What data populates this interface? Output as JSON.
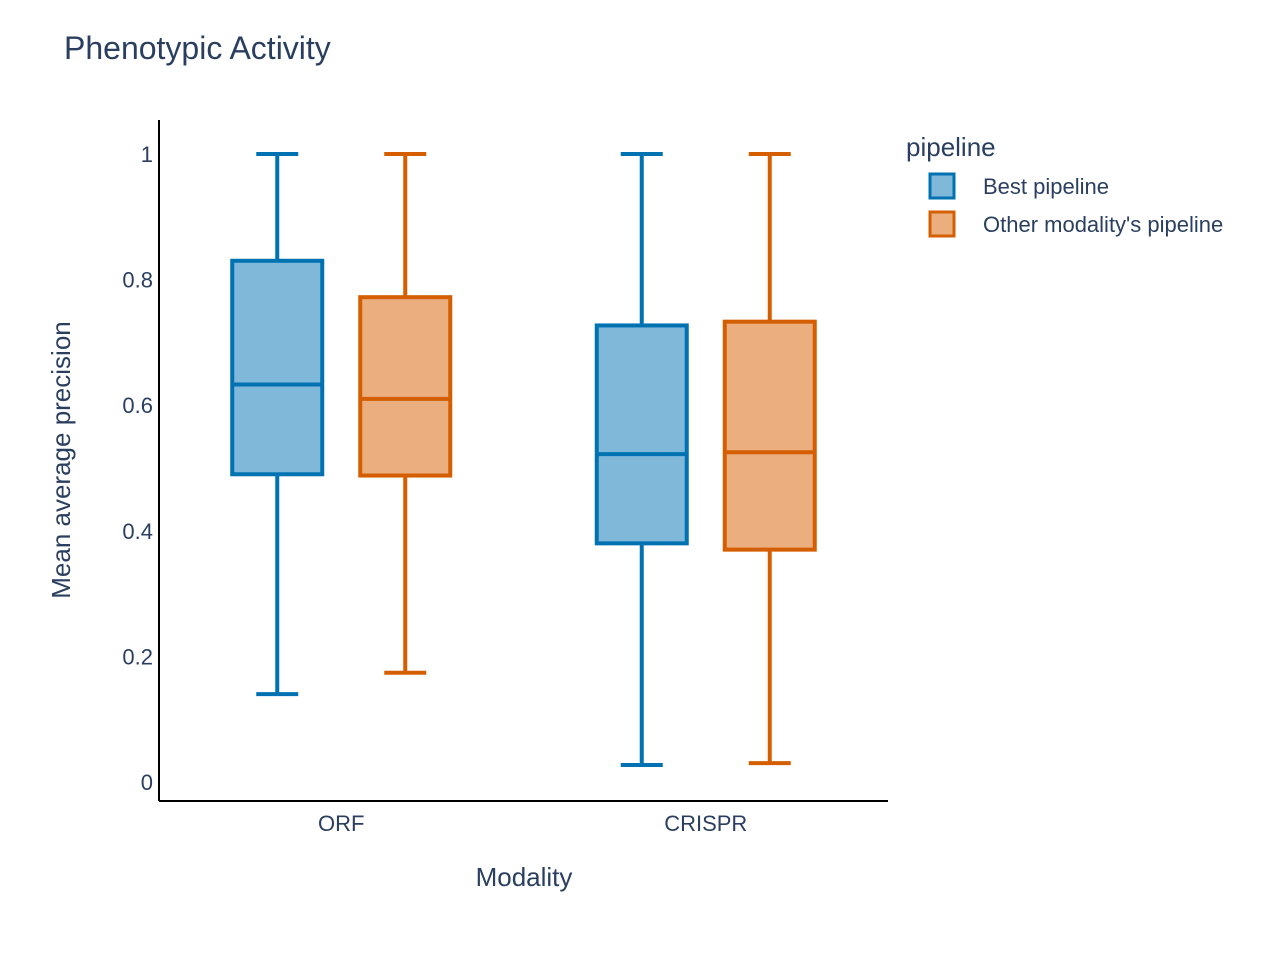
{
  "chart_data": {
    "type": "box",
    "title": "Phenotypic Activity",
    "xlabel": "Modality",
    "ylabel": "Mean average precision",
    "categories": [
      "ORF",
      "CRISPR"
    ],
    "ylim": [
      -0.03,
      1.05
    ],
    "yticks": [
      0,
      0.2,
      0.4,
      0.6,
      0.8,
      1
    ],
    "ytick_labels": [
      "0",
      "0.2",
      "0.4",
      "0.6",
      "0.8",
      "1"
    ],
    "grid": false,
    "legend": {
      "title": "pipeline",
      "position": "top-right"
    },
    "series": [
      {
        "name": "Best pipeline",
        "line_color": "#0072b2",
        "fill_color": "#80b8da",
        "boxes": [
          {
            "category": "ORF",
            "min": 0.14,
            "q1": 0.49,
            "median": 0.633,
            "q3": 0.83,
            "max": 1.0
          },
          {
            "category": "CRISPR",
            "min": 0.027,
            "q1": 0.38,
            "median": 0.522,
            "q3": 0.727,
            "max": 1.0
          }
        ]
      },
      {
        "name": "Other modality's pipeline",
        "line_color": "#d55e00",
        "fill_color": "#eaae7f",
        "boxes": [
          {
            "category": "ORF",
            "min": 0.174,
            "q1": 0.488,
            "median": 0.61,
            "q3": 0.772,
            "max": 1.0
          },
          {
            "category": "CRISPR",
            "min": 0.03,
            "q1": 0.37,
            "median": 0.525,
            "q3": 0.733,
            "max": 1.0
          }
        ]
      }
    ]
  }
}
